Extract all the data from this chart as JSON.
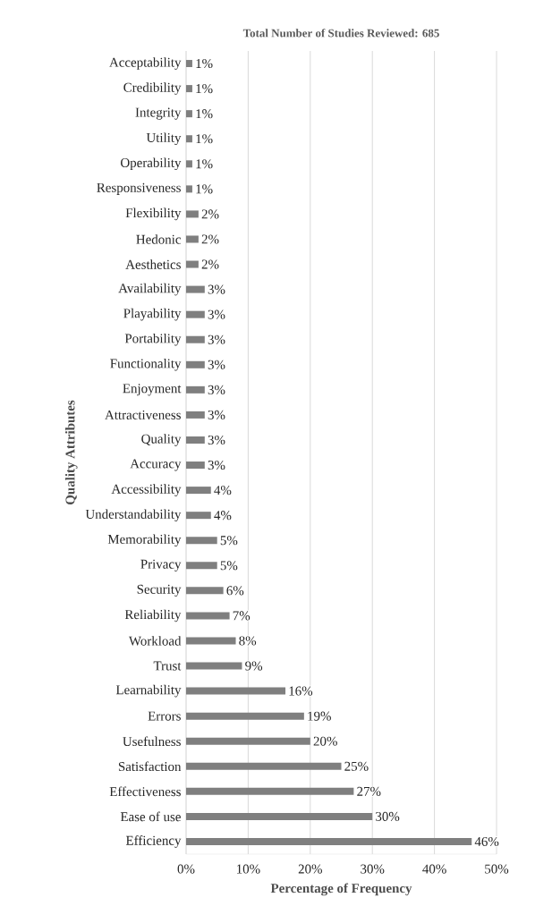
{
  "chart_data": {
    "type": "bar",
    "orientation": "horizontal",
    "title": "Total Number of Studies Reviewed: 685",
    "xlabel": "Percentage of Frequency",
    "ylabel": "Quality Attributes",
    "categories": [
      "Acceptability",
      "Credibility",
      "Integrity",
      "Utility",
      "Operability",
      "Responsiveness",
      "Flexibility",
      "Hedonic",
      "Aesthetics",
      "Availability",
      "Playability",
      "Portability",
      "Functionality",
      "Enjoyment",
      "Attractiveness",
      "Quality",
      "Accuracy",
      "Accessibility",
      "Understandability",
      "Memorability",
      "Privacy",
      "Security",
      "Reliability",
      "Workload",
      "Trust",
      "Learnability",
      "Errors",
      "Usefulness",
      "Satisfaction",
      "Effectiveness",
      "Ease of use",
      "Efficiency"
    ],
    "values": [
      1,
      1,
      1,
      1,
      1,
      1,
      2,
      2,
      2,
      3,
      3,
      3,
      3,
      3,
      3,
      3,
      3,
      4,
      4,
      5,
      5,
      6,
      7,
      8,
      9,
      16,
      19,
      20,
      25,
      27,
      30,
      46
    ],
    "value_labels": [
      "1%",
      "1%",
      "1%",
      "1%",
      "1%",
      "1%",
      "2%",
      "2%",
      "2%",
      "3%",
      "3%",
      "3%",
      "3%",
      "3%",
      "3%",
      "3%",
      "3%",
      "4%",
      "4%",
      "5%",
      "5%",
      "6%",
      "7%",
      "8%",
      "9%",
      "16%",
      "19%",
      "20%",
      "25%",
      "27%",
      "30%",
      "46%"
    ],
    "color": "#7f7f7f",
    "xlim": [
      0,
      50
    ],
    "xticks": [
      {
        "value": 0,
        "label": "0%"
      },
      {
        "value": 10,
        "label": "10%"
      },
      {
        "value": 20,
        "label": "20%"
      },
      {
        "value": 30,
        "label": "30%"
      },
      {
        "value": 40,
        "label": "40%"
      },
      {
        "value": 50,
        "label": "50%"
      }
    ],
    "grid": "x"
  }
}
